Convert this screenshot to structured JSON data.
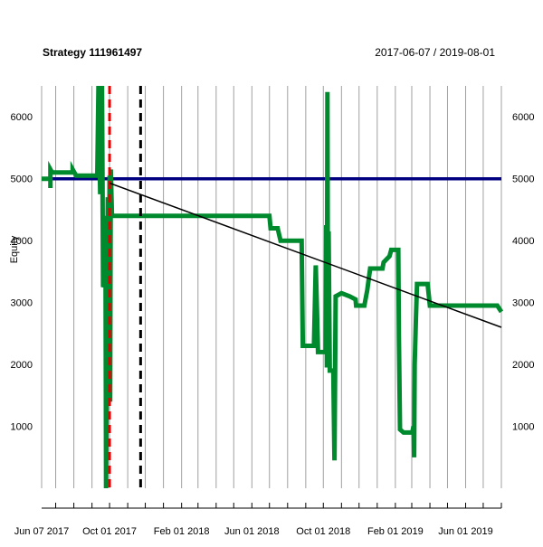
{
  "chart_data": {
    "type": "line",
    "title": "Strategy 111961497",
    "date_range": "2017-06-07 / 2019-08-01",
    "ylabel": "Equity",
    "xlabel": "",
    "x_tick_labels": [
      "Jun 07 2017",
      "Oct 01 2017",
      "Feb 01 2018",
      "Jun 01 2018",
      "Oct 01 2018",
      "Feb 01 2019",
      "Jun 01 2019"
    ],
    "y_ticks": [
      1000,
      2000,
      3000,
      4000,
      5000,
      6000
    ],
    "ylim": [
      0,
      6500
    ],
    "grid": true,
    "colors": {
      "equity": "#008a2e",
      "baseline": "#000080",
      "trend": "#000000",
      "red_marker": "#e00000",
      "black_marker": "#000000",
      "grid": "#a0a0a0"
    },
    "baseline_value": 5000,
    "trend_line": {
      "x": [
        "2017-06-07",
        "2019-08-01"
      ],
      "y": [
        5000,
        2600
      ]
    },
    "vertical_markers": [
      {
        "date": "2017-10-01",
        "style": "dashed",
        "color": "#e00000"
      },
      {
        "date": "2017-11-23",
        "style": "dashed",
        "color": "#000000"
      }
    ],
    "series": [
      {
        "name": "Equity",
        "color": "#008a2e",
        "points": [
          [
            "2017-06-07",
            5000
          ],
          [
            "2017-06-22",
            5000
          ],
          [
            "2017-06-22",
            4850
          ],
          [
            "2017-06-22",
            5150
          ],
          [
            "2017-06-25",
            5100
          ],
          [
            "2017-07-30",
            5100
          ],
          [
            "2017-07-30",
            5150
          ],
          [
            "2017-08-05",
            5050
          ],
          [
            "2017-09-10",
            5050
          ],
          [
            "2017-09-12",
            6500
          ],
          [
            "2017-09-15",
            4750
          ],
          [
            "2017-09-18",
            6500
          ],
          [
            "2017-09-20",
            3250
          ],
          [
            "2017-09-22",
            3300
          ],
          [
            "2017-09-24",
            4400
          ],
          [
            "2017-09-25",
            0
          ],
          [
            "2017-09-26",
            1400
          ],
          [
            "2017-09-28",
            4700
          ],
          [
            "2017-09-29",
            1350
          ],
          [
            "2017-10-01",
            5050
          ],
          [
            "2017-10-02",
            1400
          ],
          [
            "2017-10-03",
            5150
          ],
          [
            "2017-10-05",
            4400
          ],
          [
            "2018-07-01",
            4400
          ],
          [
            "2018-07-03",
            4200
          ],
          [
            "2018-07-15",
            4200
          ],
          [
            "2018-07-20",
            4000
          ],
          [
            "2018-08-25",
            4000
          ],
          [
            "2018-08-27",
            2300
          ],
          [
            "2018-09-15",
            2300
          ],
          [
            "2018-09-18",
            3600
          ],
          [
            "2018-09-20",
            2900
          ],
          [
            "2018-09-22",
            2200
          ],
          [
            "2018-10-05",
            2200
          ],
          [
            "2018-10-06",
            4250
          ],
          [
            "2018-10-07",
            1950
          ],
          [
            "2018-10-08",
            6400
          ],
          [
            "2018-10-09",
            2300
          ],
          [
            "2018-10-10",
            4150
          ],
          [
            "2018-10-12",
            1900
          ],
          [
            "2018-10-18",
            1900
          ],
          [
            "2018-10-19",
            1200
          ],
          [
            "2018-10-20",
            450
          ],
          [
            "2018-10-22",
            3100
          ],
          [
            "2018-11-01",
            3150
          ],
          [
            "2018-11-15",
            3100
          ],
          [
            "2018-11-25",
            3050
          ],
          [
            "2018-11-26",
            2950
          ],
          [
            "2018-12-10",
            2950
          ],
          [
            "2018-12-15",
            3200
          ],
          [
            "2018-12-20",
            3550
          ],
          [
            "2019-01-10",
            3550
          ],
          [
            "2019-01-12",
            3650
          ],
          [
            "2019-01-22",
            3750
          ],
          [
            "2019-01-25",
            3850
          ],
          [
            "2019-02-06",
            3850
          ],
          [
            "2019-02-07",
            2400
          ],
          [
            "2019-02-09",
            950
          ],
          [
            "2019-02-15",
            900
          ],
          [
            "2019-03-02",
            900
          ],
          [
            "2019-03-04",
            1000
          ],
          [
            "2019-03-05",
            500
          ],
          [
            "2019-03-06",
            2000
          ],
          [
            "2019-03-08",
            2700
          ],
          [
            "2019-03-10",
            3300
          ],
          [
            "2019-03-28",
            3300
          ],
          [
            "2019-04-01",
            2950
          ],
          [
            "2019-07-25",
            2950
          ],
          [
            "2019-08-01",
            2850
          ]
        ]
      }
    ]
  }
}
